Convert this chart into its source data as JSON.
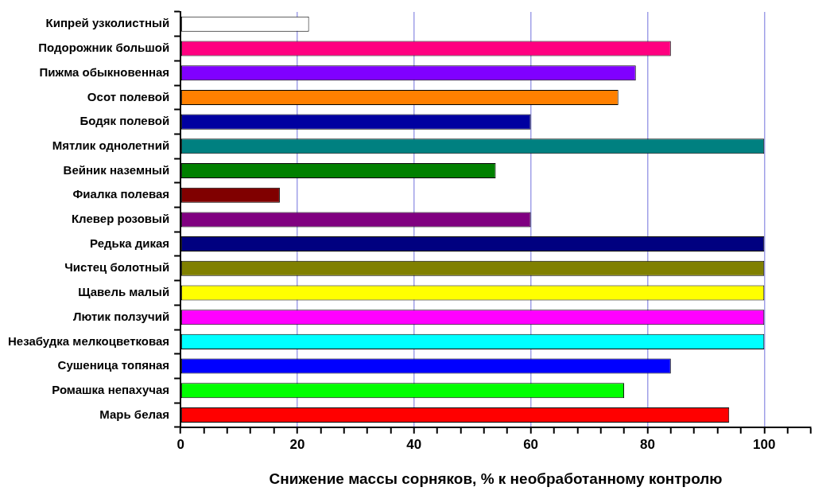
{
  "chart_data": {
    "type": "bar",
    "orientation": "horizontal",
    "xlabel": "Снижение массы сорняков, % к необработанному контролю",
    "categories": [
      "Кипрей узколистный",
      "Подорожник большой",
      "Пижма обыкновенная",
      "Осот полевой",
      "Бодяк полевой",
      "Мятлик однолетний",
      "Вейник наземный",
      "Фиалка полевая",
      "Клевер розовый",
      "Редька дикая",
      "Чистец болотный",
      "Щавель малый",
      "Лютик ползучий",
      "Незабудка мелкоцветковая",
      "Сушеница топяная",
      "Ромашка непахучая",
      "Марь белая"
    ],
    "values": [
      22,
      84,
      78,
      75,
      60,
      100,
      54,
      17,
      60,
      100,
      100,
      100,
      100,
      100,
      84,
      76,
      94
    ],
    "colors": [
      "#ffffff",
      "#ff0080",
      "#8000ff",
      "#ff8000",
      "#0000a0",
      "#008080",
      "#008000",
      "#800000",
      "#800080",
      "#000080",
      "#808000",
      "#ffff00",
      "#ff00ff",
      "#00ffff",
      "#0000ff",
      "#00ff00",
      "#ff0000"
    ],
    "xlim": [
      0,
      108
    ],
    "xticks": [
      0,
      {
        "value": 4,
        "label": null
      },
      {
        "value": 8,
        "label": null
      },
      {
        "value": 12,
        "label": null
      },
      {
        "value": 16,
        "label": null
      },
      20,
      {
        "value": 24,
        "label": null
      },
      {
        "value": 28,
        "label": null
      },
      {
        "value": 32,
        "label": null
      },
      {
        "value": 36,
        "label": null
      },
      40,
      {
        "value": 44,
        "label": null
      },
      {
        "value": 48,
        "label": null
      },
      {
        "value": 52,
        "label": null
      },
      {
        "value": 56,
        "label": null
      },
      60,
      {
        "value": 64,
        "label": null
      },
      {
        "value": 68,
        "label": null
      },
      {
        "value": 72,
        "label": null
      },
      {
        "value": 76,
        "label": null
      },
      80,
      {
        "value": 84,
        "label": null
      },
      {
        "value": 88,
        "label": null
      },
      {
        "value": 92,
        "label": null
      },
      {
        "value": 96,
        "label": null
      },
      100,
      {
        "value": 104,
        "label": null
      },
      {
        "value": 108,
        "label": null
      }
    ],
    "grid": "x"
  }
}
